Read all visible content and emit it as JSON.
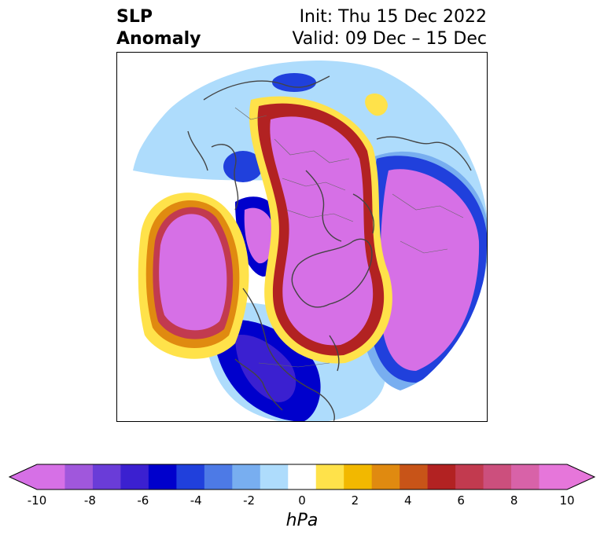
{
  "title": {
    "left_line1": "SLP",
    "left_line2": "Anomaly",
    "right_line1": "Init: Thu 15 Dec 2022",
    "right_line2": "Valid: 09 Dec – 15 Dec"
  },
  "map": {
    "projection": "north polar stereographic",
    "field": "sea level pressure anomaly"
  },
  "colorbar": {
    "unit": "hPa",
    "extend": "both",
    "levels": [
      -10,
      -9,
      -8,
      -7,
      -6,
      -5,
      -4,
      -3,
      -2,
      -1,
      1,
      2,
      3,
      4,
      5,
      6,
      7,
      8,
      9,
      10
    ],
    "colors": [
      "#d670e6",
      "#a057dc",
      "#6a3cd8",
      "#3b20d0",
      "#0000cc",
      "#2040dc",
      "#4d7ae6",
      "#78aef0",
      "#aedcfc",
      "#ffffff",
      "#ffe24a",
      "#f2b800",
      "#e08a10",
      "#c85418",
      "#b22222",
      "#c23a4f",
      "#cc4f7d",
      "#d862a8",
      "#e676da"
    ],
    "tick_labels": [
      "-10",
      "-8",
      "-6",
      "-4",
      "-2",
      "0",
      "2",
      "4",
      "6",
      "8",
      "10"
    ]
  }
}
